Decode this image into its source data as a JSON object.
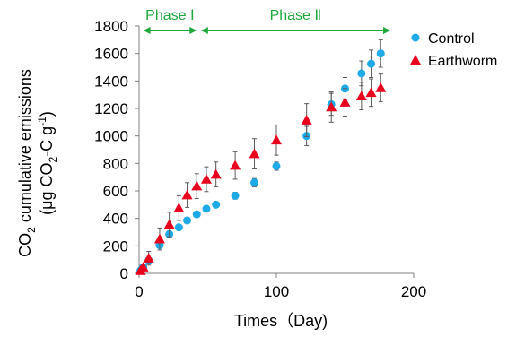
{
  "colors": {
    "control": "#1eaae7",
    "earthworm": "#e8001c",
    "phase": "#21a83d",
    "axis": "#7f7f7f",
    "error_bar": "#595959"
  },
  "chart_data": {
    "type": "scatter",
    "xlabel": "Times（Day)",
    "ylabel": {
      "line1_parts": [
        "CO",
        "2",
        " cumulative emissions"
      ],
      "line2_parts": [
        "(μg CO",
        "2",
        "-C g",
        "-1",
        ")"
      ]
    },
    "xlim": [
      0,
      200
    ],
    "ylim": [
      0,
      1800
    ],
    "x_ticks": [
      0,
      100,
      200
    ],
    "y_ticks": [
      0,
      200,
      400,
      600,
      800,
      1000,
      1200,
      1400,
      1600,
      1800
    ],
    "grid": false,
    "legend_position": "top-right",
    "phases": [
      {
        "label": "Phase Ⅰ",
        "start": 3,
        "end": 42
      },
      {
        "label": "Phase Ⅱ",
        "start": 45,
        "end": 183
      }
    ],
    "series": [
      {
        "name": "Control",
        "marker": "circle",
        "x": [
          1,
          3,
          7,
          15,
          22,
          29,
          35,
          42,
          49,
          56,
          70,
          84,
          100,
          122,
          140,
          150,
          162,
          169,
          176
        ],
        "y": [
          20,
          45,
          95,
          205,
          285,
          335,
          385,
          430,
          470,
          500,
          565,
          660,
          780,
          1000,
          1230,
          1345,
          1455,
          1525,
          1600
        ],
        "err": [
          20,
          15,
          20,
          20,
          15,
          15,
          10,
          15,
          15,
          15,
          25,
          30,
          30,
          70,
          80,
          80,
          90,
          100,
          100
        ]
      },
      {
        "name": "Earthworm",
        "marker": "triangle",
        "x": [
          1,
          3,
          7,
          15,
          22,
          29,
          35,
          42,
          49,
          56,
          70,
          84,
          100,
          122,
          140,
          150,
          162,
          169,
          176
        ],
        "y": [
          20,
          45,
          110,
          250,
          355,
          475,
          570,
          635,
          685,
          720,
          785,
          870,
          970,
          1115,
          1210,
          1245,
          1290,
          1315,
          1350
        ],
        "err": [
          15,
          20,
          50,
          80,
          90,
          90,
          90,
          90,
          90,
          90,
          100,
          110,
          110,
          120,
          110,
          100,
          100,
          100,
          100
        ]
      }
    ]
  }
}
